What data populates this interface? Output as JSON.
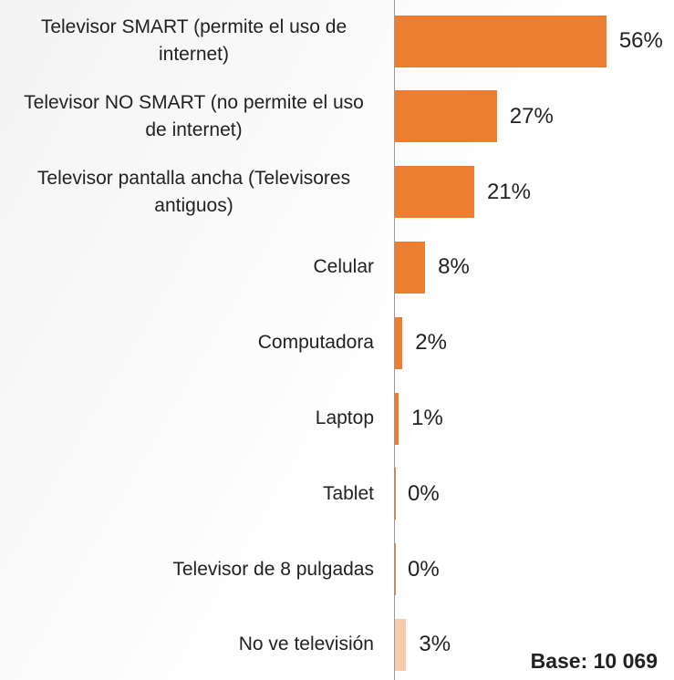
{
  "chart_data": {
    "type": "barh",
    "categories": [
      "Televisor SMART (permite el uso de internet)",
      "Televisor NO SMART (no permite el uso de internet)",
      "Televisor pantalla ancha (Televisores antiguos)",
      "Celular",
      "Computadora",
      "Laptop",
      "Tablet",
      "Televisor de 8 pulgadas",
      "No ve televisión"
    ],
    "values": [
      56,
      27,
      21,
      8,
      2,
      1,
      0,
      0,
      3
    ],
    "value_labels": [
      "56%",
      "27%",
      "21%",
      "8%",
      "2%",
      "1%",
      "0%",
      "0%",
      "3%"
    ],
    "colors": [
      "#ed7d31",
      "#ed7d31",
      "#ed7d31",
      "#ed7d31",
      "#ed7d31",
      "#ed7d31",
      "#ed7d31",
      "#ed7d31",
      "#f8cbad"
    ],
    "annotation": "Base: 10 069"
  }
}
